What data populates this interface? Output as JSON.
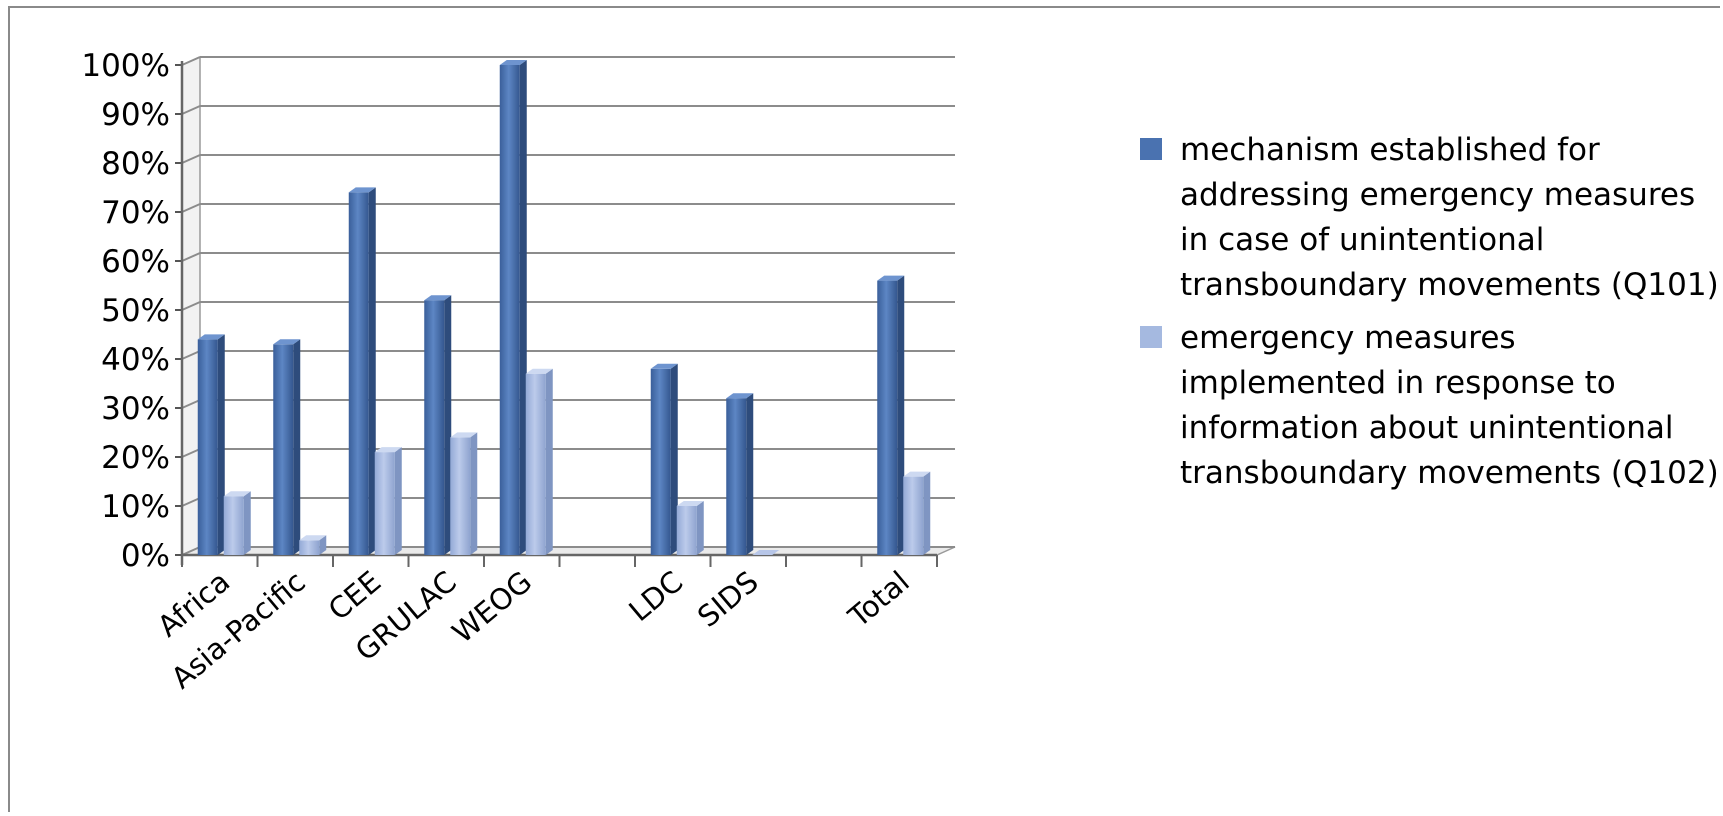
{
  "chart_data": {
    "type": "bar",
    "title": "",
    "xlabel": "",
    "ylabel": "",
    "ylim": [
      0,
      100
    ],
    "y_ticks": [
      "0%",
      "10%",
      "20%",
      "30%",
      "40%",
      "50%",
      "60%",
      "70%",
      "80%",
      "90%",
      "100%"
    ],
    "categories": [
      "Africa",
      "Asia-Pacific",
      "CEE",
      "GRULAC",
      "WEOG",
      "",
      "LDC",
      "SIDS",
      "",
      "Total"
    ],
    "series": [
      {
        "name": "mechanism established for addressing emergency measures in case of unintentional transboundary movements (Q101)",
        "color": "#4a72b0",
        "values": [
          44,
          43,
          74,
          52,
          100,
          null,
          38,
          32,
          null,
          56
        ]
      },
      {
        "name": "emergency measures implemented in response to information about unintentional transboundary movements (Q102)",
        "color": "#a5b9e0",
        "values": [
          12,
          3,
          21,
          24,
          37,
          null,
          10,
          0,
          null,
          16
        ]
      }
    ],
    "grid": true,
    "legend_position": "right"
  }
}
